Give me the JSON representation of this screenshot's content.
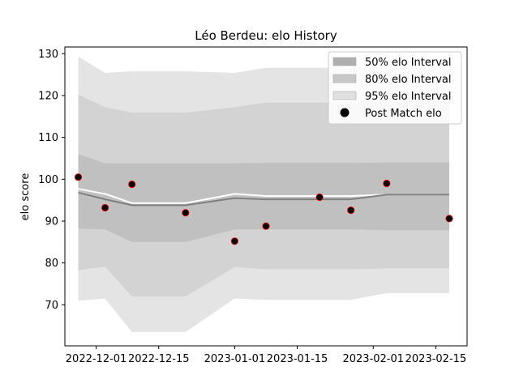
{
  "chart_data": {
    "type": "area",
    "title": "Léo Berdeu: elo History",
    "xlabel": "",
    "ylabel": "elo score",
    "xlim": [
      "2022-11-24",
      "2023-02-22"
    ],
    "ylim": [
      60.2,
      131.6
    ],
    "yticks": [
      70,
      80,
      90,
      100,
      110,
      120,
      130
    ],
    "xticks": [
      "2022-12-01",
      "2022-12-15",
      "2023-01-01",
      "2023-01-15",
      "2023-02-01",
      "2023-02-15"
    ],
    "grid": false,
    "legend_position": "top-right",
    "x": [
      "2022-11-27",
      "2022-12-03",
      "2022-12-09",
      "2022-12-21",
      "2023-01-01",
      "2023-01-08",
      "2023-01-20",
      "2023-01-27",
      "2023-02-04",
      "2023-02-18"
    ],
    "series": [
      {
        "name": "95% elo Interval",
        "kind": "band",
        "color": "#e4e4e4",
        "lower": [
          71.0,
          71.5,
          63.5,
          63.5,
          71.5,
          71.2,
          71.2,
          71.2,
          72.8,
          72.8
        ],
        "upper": [
          129.3,
          125.4,
          125.8,
          125.8,
          125.4,
          126.6,
          126.6,
          126.6,
          126.5,
          126.5
        ]
      },
      {
        "name": "80% elo Interval",
        "kind": "band",
        "color": "#d3d3d3",
        "lower": [
          78.3,
          79.1,
          72.0,
          72.0,
          79.0,
          78.5,
          78.5,
          78.5,
          78.7,
          78.7
        ],
        "upper": [
          120.2,
          117.2,
          115.9,
          115.9,
          117.2,
          118.3,
          118.3,
          118.3,
          118.1,
          118.1
        ]
      },
      {
        "name": "50% elo Interval",
        "kind": "band",
        "color": "#c0c0c0",
        "lower": [
          88.2,
          88.0,
          85.0,
          85.0,
          88.0,
          88.0,
          88.0,
          88.0,
          87.8,
          87.8
        ],
        "upper": [
          106.0,
          103.8,
          103.8,
          103.8,
          103.8,
          103.9,
          103.9,
          103.9,
          104.0,
          104.0
        ]
      },
      {
        "name": "",
        "kind": "line",
        "color": "#ffffff",
        "values": [
          97.7,
          96.5,
          94.3,
          94.3,
          96.5,
          96.0,
          96.0,
          96.0,
          96.3,
          96.3
        ]
      },
      {
        "name": "",
        "kind": "line",
        "color": "#808080",
        "values": [
          96.8,
          95.2,
          93.8,
          93.8,
          95.5,
          95.2,
          95.2,
          95.2,
          96.3,
          96.3
        ]
      }
    ],
    "points": {
      "name": "Post Match elo",
      "color": "#000000",
      "edge_color": "#ff0000",
      "data": [
        {
          "x": "2022-11-27",
          "y": 100.5
        },
        {
          "x": "2022-12-03",
          "y": 93.2
        },
        {
          "x": "2022-12-09",
          "y": 98.8
        },
        {
          "x": "2022-12-21",
          "y": 92.0
        },
        {
          "x": "2023-01-01",
          "y": 85.2
        },
        {
          "x": "2023-01-08",
          "y": 88.8
        },
        {
          "x": "2023-01-20",
          "y": 95.7
        },
        {
          "x": "2023-01-27",
          "y": 92.6
        },
        {
          "x": "2023-02-04",
          "y": 99.0
        },
        {
          "x": "2023-02-18",
          "y": 90.6
        }
      ]
    },
    "legend": [
      {
        "label": "50% elo Interval",
        "kind": "patch",
        "color": "#b0b0b0"
      },
      {
        "label": "80% elo Interval",
        "kind": "patch",
        "color": "#c8c8c8"
      },
      {
        "label": "95% elo Interval",
        "kind": "patch",
        "color": "#e0e0e0"
      },
      {
        "label": "Post Match elo",
        "kind": "marker",
        "color": "#000000"
      }
    ]
  }
}
